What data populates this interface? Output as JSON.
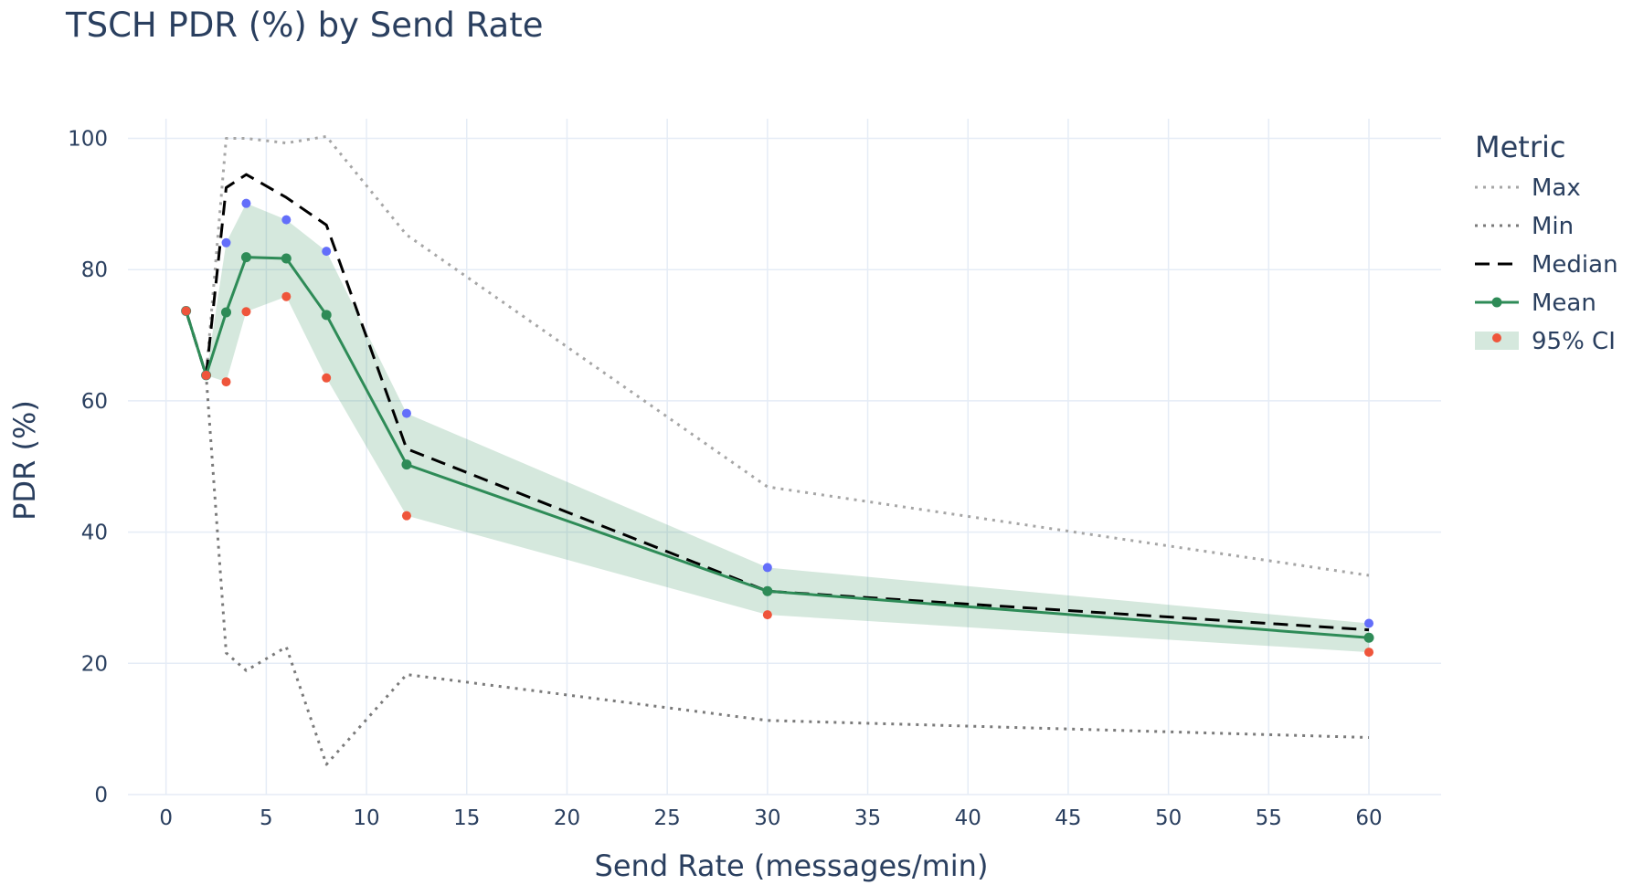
{
  "chart_data": {
    "type": "line",
    "title": "TSCH PDR (%) by Send Rate",
    "xlabel": "Send Rate (messages/min)",
    "ylabel": "PDR (%)",
    "xlim": [
      -1.9,
      63.6
    ],
    "ylim": [
      0,
      103
    ],
    "xticks": [
      0,
      5,
      10,
      15,
      20,
      25,
      30,
      35,
      40,
      45,
      50,
      55,
      60
    ],
    "yticks": [
      0,
      20,
      40,
      60,
      80,
      100
    ],
    "grid": true,
    "legend_title": "Metric",
    "legend_position": "top-right",
    "x": [
      1,
      2,
      3,
      4,
      6,
      8,
      12,
      30,
      60
    ],
    "series": [
      {
        "name": "Max",
        "style": "dotted",
        "color": "#a6a6a6",
        "values": [
          73.7,
          63.9,
          100,
          100,
          99.3,
          100.3,
          85.3,
          46.9,
          33.4
        ]
      },
      {
        "name": "Min",
        "style": "dotted",
        "color": "#7a7a7a",
        "values": [
          73.7,
          63.9,
          21.6,
          18.9,
          22.5,
          4.6,
          18.3,
          11.3,
          8.7
        ]
      },
      {
        "name": "Median",
        "style": "dashed",
        "color": "#000000",
        "values": [
          73.7,
          63.9,
          92.5,
          94.5,
          91.0,
          86.8,
          52.7,
          31.0,
          25.1
        ]
      },
      {
        "name": "Mean",
        "style": "solid-markers",
        "color": "#2e8b57",
        "values": [
          73.7,
          63.9,
          73.5,
          81.9,
          81.7,
          73.1,
          50.3,
          31.0,
          23.9
        ]
      }
    ],
    "ci": {
      "name": "95% CI",
      "band_color": "rgba(46,139,87,0.2)",
      "upper_color": "#636efa",
      "lower_color": "#ef553b",
      "upper": [
        73.7,
        63.9,
        84.1,
        90.1,
        87.6,
        82.8,
        58.1,
        34.6,
        26.1
      ],
      "lower": [
        73.7,
        63.9,
        62.9,
        73.6,
        75.9,
        63.5,
        42.5,
        27.4,
        21.7
      ]
    }
  }
}
